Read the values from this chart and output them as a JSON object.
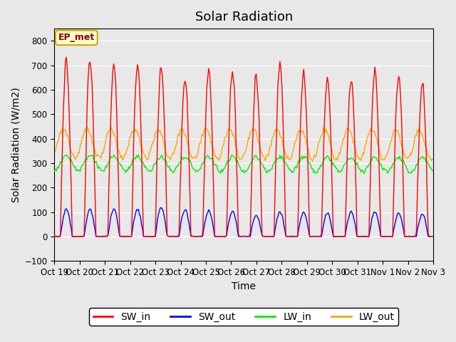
{
  "title": "Solar Radiation",
  "ylabel": "Solar Radiation (W/m2)",
  "xlabel": "Time",
  "ylim": [
    -100,
    850
  ],
  "yticks": [
    -100,
    0,
    100,
    200,
    300,
    400,
    500,
    600,
    700,
    800
  ],
  "plot_bg_color": "#e8e8e8",
  "sw_in_color": "red",
  "sw_out_color": "blue",
  "lw_in_color": "#00ee00",
  "lw_out_color": "orange",
  "annotation_text": "EP_met",
  "annotation_bg": "#ffffcc",
  "annotation_border": "#ccaa00",
  "num_days": 16,
  "sw_in_peaks": [
    720,
    720,
    710,
    710,
    700,
    650,
    680,
    680,
    660,
    700,
    670,
    640,
    650,
    675,
    660,
    640
  ],
  "sw_out_peaks": [
    110,
    110,
    110,
    110,
    120,
    110,
    105,
    105,
    90,
    100,
    100,
    95,
    100,
    100,
    95,
    90
  ],
  "lw_in_base": 300,
  "lw_out_base": 380,
  "lw_in_amplitude": 30,
  "lw_out_amplitude": 60,
  "legend_entries": [
    "SW_in",
    "SW_out",
    "LW_in",
    "LW_out"
  ],
  "xtick_labels": [
    "Oct 19",
    "Oct 20",
    "Oct 21",
    "Oct 22",
    "Oct 23",
    "Oct 24",
    "Oct 25",
    "Oct 26",
    "Oct 27",
    "Oct 28",
    "Oct 29",
    "Oct 30",
    "Oct 31",
    "Nov 1",
    "Nov 2",
    "Nov 3"
  ],
  "title_fontsize": 13,
  "axis_fontsize": 10,
  "tick_fontsize": 8.5
}
